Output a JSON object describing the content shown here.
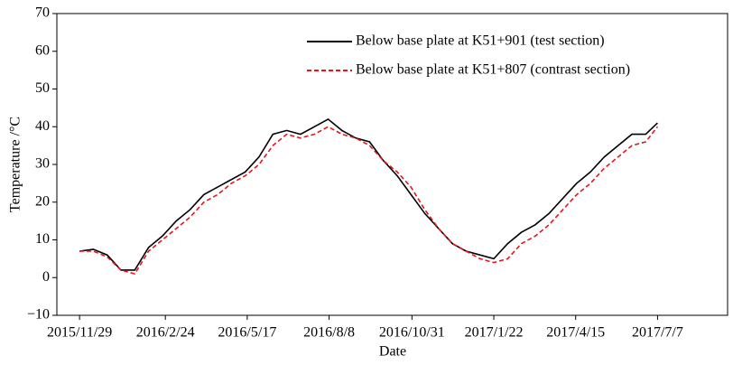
{
  "chart_data": {
    "type": "line",
    "x_label": "Date",
    "y_label": "Temperature /°C",
    "x": [
      "2015/11/29",
      "2015/12/13",
      "2015/12/27",
      "2016/1/10",
      "2016/1/24",
      "2016/2/7",
      "2016/2/21",
      "2016/3/6",
      "2016/3/20",
      "2016/4/3",
      "2016/4/17",
      "2016/5/1",
      "2016/5/15",
      "2016/5/29",
      "2016/6/12",
      "2016/6/26",
      "2016/7/10",
      "2016/7/24",
      "2016/8/7",
      "2016/8/21",
      "2016/9/4",
      "2016/9/18",
      "2016/10/2",
      "2016/10/16",
      "2016/10/30",
      "2016/11/13",
      "2016/11/27",
      "2016/12/11",
      "2016/12/25",
      "2017/1/8",
      "2017/1/22",
      "2017/2/5",
      "2017/2/19",
      "2017/3/5",
      "2017/3/19",
      "2017/4/2",
      "2017/4/16",
      "2017/4/30",
      "2017/5/14",
      "2017/5/28",
      "2017/6/11",
      "2017/6/25",
      "2017/7/7"
    ],
    "series": [
      {
        "name": "Below base plate at K51+901 (test section)",
        "color": "#000000",
        "dash": false,
        "values": [
          7,
          7.5,
          6,
          2,
          2,
          8,
          11,
          15,
          18,
          22,
          24,
          26,
          28,
          32,
          38,
          39,
          38,
          40,
          42,
          39,
          37,
          36,
          31,
          27,
          22,
          17,
          13,
          9,
          7,
          6,
          5,
          9,
          12,
          14,
          17,
          21,
          25,
          28,
          32,
          35,
          38,
          38,
          41
        ]
      },
      {
        "name": "Below base plate at K51+807 (contrast section)",
        "color": "#e8141b",
        "dash": true,
        "values": [
          7,
          7,
          5.5,
          2,
          1,
          7,
          10,
          13,
          16,
          20,
          22,
          25,
          27,
          30,
          35,
          38,
          37,
          38,
          40,
          38,
          37,
          35,
          31,
          28,
          24,
          18,
          13,
          9,
          7,
          5,
          4,
          5,
          9,
          11,
          14,
          18,
          22,
          25,
          29,
          32,
          35,
          36,
          40
        ]
      }
    ],
    "xlim": [
      "2015/11/6",
      "2017/9/16"
    ],
    "xticks": [
      "2015/11/29",
      "2016/2/24",
      "2016/5/17",
      "2016/8/8",
      "2016/10/31",
      "2017/1/22",
      "2017/4/15",
      "2017/7/7"
    ],
    "ylim": [
      -10,
      70
    ],
    "yticks": [
      {
        "value": -10,
        "label": "−10"
      },
      0,
      10,
      20,
      30,
      40,
      50,
      60,
      70
    ],
    "legend": "upper right"
  }
}
